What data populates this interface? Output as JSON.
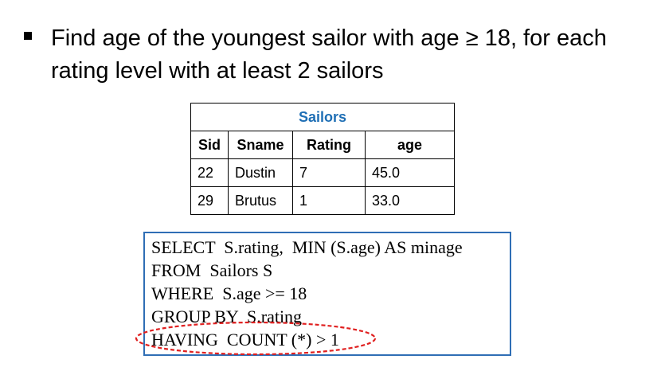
{
  "bullet": {
    "text": "Find age of the youngest sailor with age ≥ 18, for each rating level with at least 2 sailors"
  },
  "table": {
    "caption": "Sailors",
    "headers": [
      "Sid",
      "Sname",
      "Rating",
      "age"
    ],
    "rows": [
      [
        "22",
        "Dustin",
        "7",
        "45.0"
      ],
      [
        "29",
        "Brutus",
        "1",
        "33.0"
      ]
    ],
    "caption_color": "#1f6fb5"
  },
  "sql": {
    "lines": [
      "SELECT  S.rating,  MIN (S.age) AS minage",
      "FROM  Sailors S",
      "WHERE  S.age >= 18",
      "GROUP BY  S.rating",
      "HAVING  COUNT (*) > 1"
    ],
    "box_color": "#2f6eb5",
    "highlight_color": "#e02020"
  }
}
